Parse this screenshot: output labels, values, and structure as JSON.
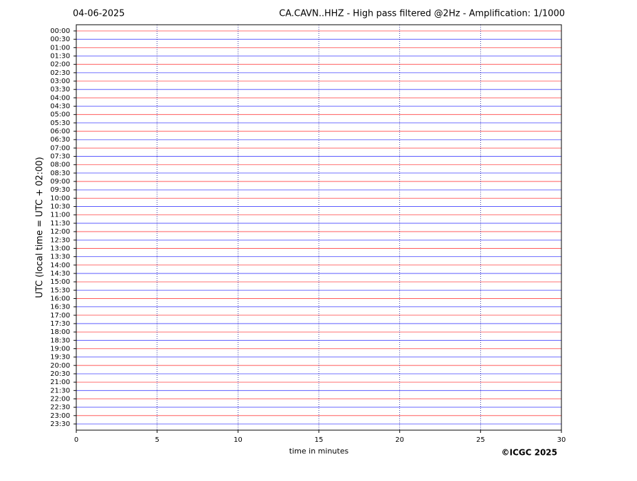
{
  "chart_data": {
    "type": "line",
    "date": "04-06-2025",
    "title": "CA.CAVN..HHZ - High pass filtered @2Hz - Amplification: 1/1000",
    "ylabel": "UTC (local time = UTC + 02:00)",
    "xlabel": "time in minutes",
    "copyright": "©ICGC 2025",
    "categories": [
      "00:00",
      "00:30",
      "01:00",
      "01:30",
      "02:00",
      "02:30",
      "03:00",
      "03:30",
      "04:00",
      "04:30",
      "05:00",
      "05:30",
      "06:00",
      "06:30",
      "07:00",
      "07:30",
      "08:00",
      "08:30",
      "09:00",
      "09:30",
      "10:00",
      "10:30",
      "11:00",
      "11:30",
      "12:00",
      "12:30",
      "13:00",
      "13:30",
      "14:00",
      "14:30",
      "15:00",
      "15:30",
      "16:00",
      "16:30",
      "17:00",
      "17:30",
      "18:00",
      "18:30",
      "19:00",
      "19:30",
      "20:00",
      "20:30",
      "21:00",
      "21:30",
      "22:00",
      "22:30",
      "23:00",
      "23:30"
    ],
    "colors": [
      "#ff0000",
      "#0000ff"
    ],
    "xlim": [
      0,
      30
    ],
    "xticks": [
      0,
      5,
      10,
      15,
      20,
      25,
      30
    ],
    "grid": true
  }
}
